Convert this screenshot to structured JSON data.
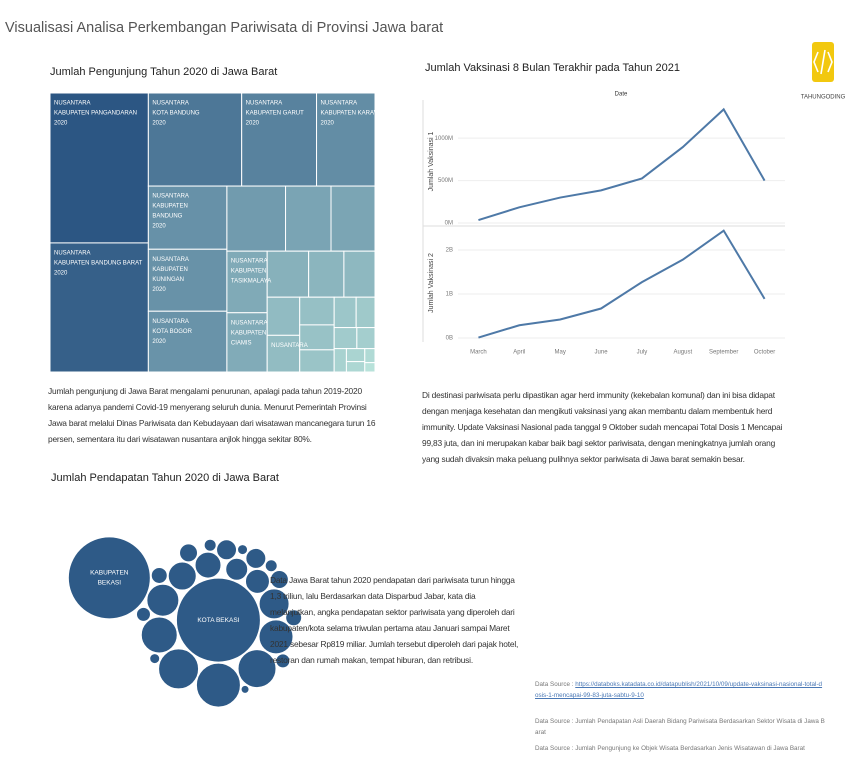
{
  "title": "Visualisasi Analisa Perkembangan Pariwisata di Provinsi Jawa barat",
  "logo_text": "TAHUNGODING",
  "chart_data": [
    {
      "type": "treemap",
      "title": "Jumlah Pengunjung Tahun 2020 di Jawa Barat",
      "labels": [
        [
          "NUSANTARA",
          "KABUPATEN PANGANDARAN",
          "2020"
        ],
        [
          "NUSANTARA",
          "KABUPATEN BANDUNG BARAT",
          "2020"
        ],
        [
          "NUSANTARA",
          "KOTA BANDUNG",
          "2020"
        ],
        [
          "NUSANTARA",
          "KABUPATEN GARUT",
          "2020"
        ],
        [
          "NUSANTARA",
          "KABUPATEN KARAWANG",
          "2020"
        ],
        [
          "NUSANTARA",
          "KABUPATEN",
          "BANDUNG",
          "2020"
        ],
        [
          "NUSANTARA",
          "KABUPATEN",
          "KUNINGAN",
          "2020"
        ],
        [
          "NUSANTARA",
          "KOTA BOGOR",
          "2020"
        ],
        null,
        null,
        null,
        [
          "NUSANTARA",
          "KABUPATEN",
          "TASIKMALAYA"
        ],
        [
          "NUSANTARA",
          "KABUPATEN",
          "CIAMIS"
        ],
        null,
        null,
        null,
        null,
        [
          "NUSANTARA"
        ],
        null,
        null,
        null,
        null,
        null,
        null,
        null,
        null,
        null,
        null,
        null,
        null
      ],
      "values": [
        15450,
        13300,
        9100,
        7300,
        5700,
        5200,
        5100,
        5000,
        4000,
        3100,
        3000,
        2600,
        2500,
        2000,
        1700,
        1500,
        1300,
        1250,
        1000,
        900,
        800,
        700,
        600,
        500,
        400,
        300,
        250,
        200,
        150,
        100
      ],
      "color_range": [
        "#b8e2da",
        "#2c5683"
      ]
    },
    {
      "type": "line",
      "title": "Jumlah Vaksinasi 8 Bulan Terakhir pada Tahun 2021",
      "x_header": "Date",
      "categories": [
        "March",
        "April",
        "May",
        "June",
        "July",
        "August",
        "September",
        "October"
      ],
      "series": [
        {
          "name": "Jumlah Vaksinasi 1",
          "color": "#4e79a7",
          "values": [
            35000000,
            185000000,
            300000000,
            385000000,
            525000000,
            895000000,
            1340000000,
            500000000
          ],
          "ylim": [
            0,
            1450000000
          ],
          "yticks": [
            {
              "value": 0,
              "label": "0M"
            },
            {
              "value": 500000000,
              "label": "500M"
            },
            {
              "value": 1000000000,
              "label": "1000M"
            }
          ]
        },
        {
          "name": "Jumlah Vaksinasi 2",
          "color": "#4e79a7",
          "values": [
            10000000,
            290000000,
            420000000,
            670000000,
            1270000000,
            1780000000,
            2440000000,
            890000000
          ],
          "ylim": [
            0,
            2500000000
          ],
          "yticks": [
            {
              "value": 0,
              "label": "0B"
            },
            {
              "value": 1000000000,
              "label": "1B"
            },
            {
              "value": 2000000000,
              "label": "2B"
            }
          ]
        }
      ],
      "grid": true
    },
    {
      "type": "bubble",
      "title": "Jumlah Pendapatan Tahun 2020 di Jawa Barat",
      "labels": [
        [
          "KOTA BEKASI"
        ],
        null,
        null,
        null,
        null,
        null,
        null,
        null,
        null,
        null,
        null,
        null,
        null,
        null,
        null,
        null,
        null,
        null,
        null,
        null,
        null,
        null,
        null,
        null,
        null,
        [
          "KABUPATEN",
          "BEKASI"
        ]
      ],
      "values": [
        1764,
        484,
        400,
        361,
        324,
        289,
        256,
        225,
        196,
        169,
        144,
        121,
        100,
        100,
        81,
        81,
        64,
        64,
        49,
        49,
        36,
        36,
        25,
        25,
        16,
        1681
      ],
      "color": "#2e5a87"
    }
  ],
  "paragraphs": [
    "Jumlah pengunjung di Jawa Barat mengalami penurunan, apalagi pada tahun 2019-2020 karena adanya pandemi Covid-19 menyerang seluruh dunia. Menurut Pemerintah Provinsi Jawa barat melalui Dinas Pariwisata dan Kebudayaan dari wisatawan mancanegara turun 16 persen, sementara itu dari wisatawan nusantara anjlok hingga sekitar 80%.",
    "Di destinasi pariwisata perlu dipastikan agar herd immunity (kekebalan komunal) dan ini bisa didapat dengan menjaga kesehatan dan mengikuti vaksinasi yang akan membantu dalam membentuk herd immunity. Update Vaksinasi Nasional pada tanggal 9 Oktober sudah mencapai Total Dosis 1 Mencapai 99,83 juta, dan ini merupakan kabar baik bagi sektor pariwisata, dengan meningkatnya jumlah orang yang sudah divaksin maka peluang pulihnya sektor pariwisata di Jawa barat semakin besar.",
    "Data Jawa Barat tahun 2020 pendapatan dari pariwisata turun hingga 1,3 triliun, lalu Berdasarkan data Disparbud Jabar, kata dia melanjutkan, angka pendapatan sektor pariwisata yang diperoleh dari kabupaten/kota selama triwulan pertama atau Januari sampai Maret 2021 sebesar Rp819 miliar. Jumlah tersebut diperoleh dari pajak hotel, restoran dan rumah makan, tempat hiburan, dan retribusi."
  ],
  "sources": [
    {
      "prefix": "Data Source :",
      "text": "https://databoks.katadata.co.id/datapublish/2021/10/09/update-vaksinasi-nasional-total-dosis-1-mencapai-99-83-juta-sabtu-9-10"
    },
    {
      "prefix": "Data Source :",
      "text": "Jumlah Pendapatan Asli Daerah Bidang Pariwisata Berdasarkan Sektor Wisata di Jawa Barat"
    },
    {
      "prefix": "Data Source :",
      "text": "Jumlah Pengunjung ke Objek Wisata Berdasarkan Jenis Wisatawan di Jawa Barat"
    }
  ]
}
